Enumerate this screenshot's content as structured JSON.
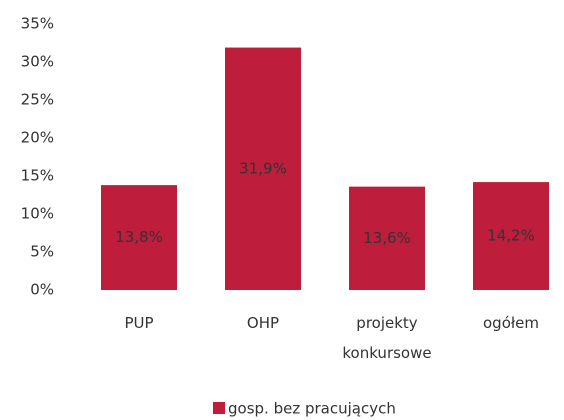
{
  "chart_data": {
    "type": "bar",
    "categories": [
      "PUP",
      "OHP",
      "projekty konkursowe",
      "ogółem"
    ],
    "series": [
      {
        "name": "gosp. bez pracujących",
        "color": "#be1e3c",
        "values": [
          13.8,
          31.9,
          13.6,
          14.2
        ],
        "value_labels": [
          "13,8%",
          "31,9%",
          "13,6%",
          "14,2%"
        ]
      }
    ],
    "ylim": [
      0,
      35
    ],
    "yticks": [
      {
        "value": 0,
        "label": "0%"
      },
      {
        "value": 5,
        "label": "5%"
      },
      {
        "value": 10,
        "label": "10%"
      },
      {
        "value": 15,
        "label": "15%"
      },
      {
        "value": 20,
        "label": "20%"
      },
      {
        "value": 25,
        "label": "25%"
      },
      {
        "value": 30,
        "label": "30%"
      },
      {
        "value": 35,
        "label": "35%"
      }
    ],
    "grid": false,
    "legend": "bottom"
  }
}
